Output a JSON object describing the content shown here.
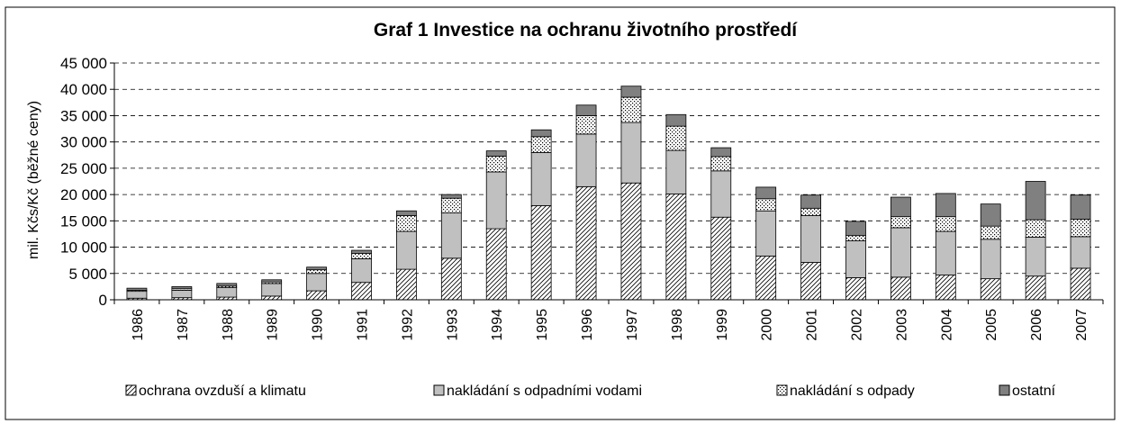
{
  "chart_data": {
    "type": "stacked_bar",
    "title": "Graf 1 Investice na ochranu životního prostředí",
    "y_label": "mil. Kčs/Kč (běžné ceny)",
    "categories": [
      "1986",
      "1987",
      "1988",
      "1989",
      "1990",
      "1991",
      "1992",
      "1993",
      "1994",
      "1995",
      "1996",
      "1997",
      "1998",
      "1999",
      "2000",
      "2001",
      "2002",
      "2003",
      "2004",
      "2005",
      "2006",
      "2007"
    ],
    "series": [
      {
        "name": "ochrana ovzduší a klimatu",
        "color": "#ffffff",
        "pattern": "diagonal",
        "values": [
          300,
          400,
          500,
          700,
          1700,
          3300,
          5800,
          7900,
          13500,
          17900,
          21500,
          22200,
          20100,
          15700,
          8300,
          7100,
          4200,
          4300,
          4700,
          4000,
          4500,
          6000
        ]
      },
      {
        "name": "nakládání s odpadními vodami",
        "color": "#c0c0c0",
        "pattern": "none",
        "values": [
          1300,
          1400,
          1800,
          2400,
          3300,
          4500,
          7200,
          8600,
          10800,
          10100,
          10000,
          11500,
          8300,
          8800,
          8600,
          8900,
          7000,
          9400,
          8300,
          7500,
          7400,
          6000
        ]
      },
      {
        "name": "nakládání s odpady",
        "color": "#ffffff",
        "pattern": "dots",
        "values": [
          200,
          300,
          300,
          300,
          700,
          1000,
          3000,
          2800,
          3000,
          3000,
          3500,
          4800,
          4600,
          2700,
          2300,
          1400,
          1000,
          2100,
          2800,
          2500,
          3300,
          3300
        ]
      },
      {
        "name": "ostatní",
        "color": "#808080",
        "pattern": "none",
        "values": [
          400,
          400,
          500,
          400,
          500,
          600,
          900,
          700,
          1000,
          1300,
          2000,
          2100,
          2200,
          1700,
          2200,
          2500,
          2700,
          3700,
          4400,
          4200,
          7300,
          4600
        ]
      }
    ],
    "ylim": [
      0,
      45000
    ],
    "yticks": [
      0,
      {
        "value": 5000,
        "label": "5 000"
      },
      {
        "value": 10000,
        "label": "10 000"
      },
      {
        "value": 15000,
        "label": "15 000"
      },
      {
        "value": 20000,
        "label": "20 000"
      },
      {
        "value": 25000,
        "label": "25 000"
      },
      {
        "value": 30000,
        "label": "30 000"
      },
      {
        "value": 35000,
        "label": "35 000"
      },
      {
        "value": 40000,
        "label": "40 000"
      },
      {
        "value": 45000,
        "label": "45 000"
      }
    ],
    "grid": true,
    "legend": "bottom"
  }
}
